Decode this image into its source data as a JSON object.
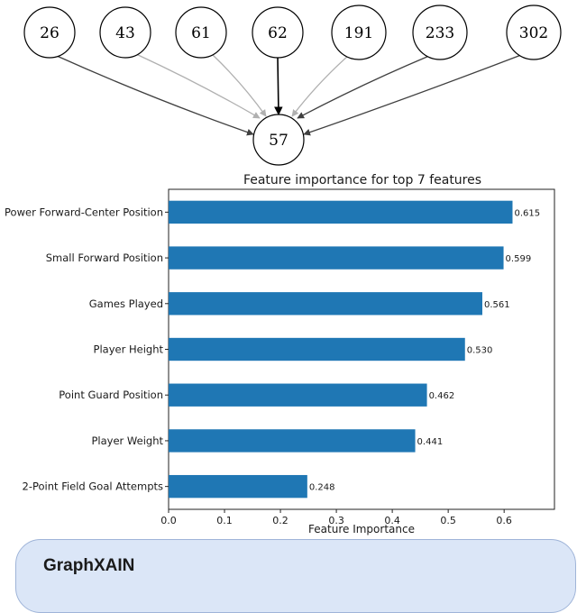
{
  "graph": {
    "target": "57",
    "sources": [
      {
        "label": "26",
        "color": "#404040"
      },
      {
        "label": "43",
        "color": "#b0b0b0"
      },
      {
        "label": "61",
        "color": "#b0b0b0"
      },
      {
        "label": "62",
        "color": "#000000"
      },
      {
        "label": "191",
        "color": "#b0b0b0"
      },
      {
        "label": "233",
        "color": "#404040"
      },
      {
        "label": "302",
        "color": "#404040"
      }
    ]
  },
  "chart_data": {
    "type": "bar",
    "orientation": "horizontal",
    "title": "Feature importance for top 7 features",
    "xlabel": "Feature Importance",
    "ylabel": "",
    "categories": [
      "Power Forward-Center Position",
      "Small Forward Position",
      "Games Played",
      "Player Height",
      "Point Guard Position",
      "Player Weight",
      "2-Point Field Goal Attempts"
    ],
    "values": [
      0.615,
      0.599,
      0.561,
      0.53,
      0.462,
      0.441,
      0.248
    ],
    "value_labels": [
      "0.615",
      "0.599",
      "0.561",
      "0.530",
      "0.462",
      "0.441",
      "0.248"
    ],
    "xlim": [
      0,
      0.69
    ],
    "xticks": [
      "0.0",
      "0.1",
      "0.2",
      "0.3",
      "0.4",
      "0.5",
      "0.6"
    ],
    "grid": false,
    "bar_color": "#1f77b4"
  },
  "panel": {
    "title": "GraphXAIN"
  }
}
